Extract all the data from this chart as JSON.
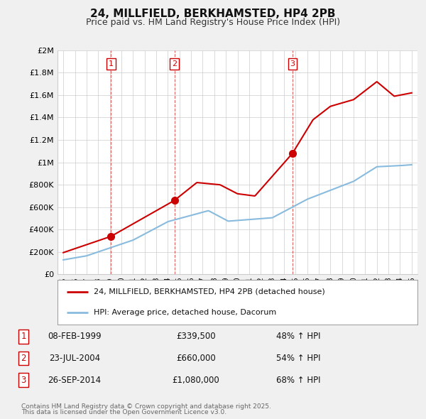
{
  "title": "24, MILLFIELD, BERKHAMSTED, HP4 2PB",
  "subtitle": "Price paid vs. HM Land Registry's House Price Index (HPI)",
  "bg_color": "#f0f0f0",
  "plot_bg_color": "#ffffff",
  "grid_color": "#cccccc",
  "red_color": "#cc0000",
  "blue_color": "#88bbdd",
  "vertical_line_color": "#cc0000",
  "transactions": [
    {
      "label": "1",
      "date_num": 1999.1,
      "price": 339500,
      "hpi_pct": "48% ↑ HPI",
      "date_str": "08-FEB-1999"
    },
    {
      "label": "2",
      "date_num": 2004.56,
      "price": 660000,
      "hpi_pct": "54% ↑ HPI",
      "date_str": "23-JUL-2004"
    },
    {
      "label": "3",
      "date_num": 2014.73,
      "price": 1080000,
      "hpi_pct": "68% ↑ HPI",
      "date_str": "26-SEP-2014"
    }
  ],
  "ylim": [
    0,
    2000000
  ],
  "xlim": [
    1994.5,
    2025.5
  ],
  "yticks": [
    0,
    200000,
    400000,
    600000,
    800000,
    1000000,
    1200000,
    1400000,
    1600000,
    1800000,
    2000000
  ],
  "ytick_labels": [
    "£0",
    "£200K",
    "£400K",
    "£600K",
    "£800K",
    "£1M",
    "£1.2M",
    "£1.4M",
    "£1.6M",
    "£1.8M",
    "£2M"
  ],
  "xticks": [
    1995,
    1996,
    1997,
    1998,
    1999,
    2000,
    2001,
    2002,
    2003,
    2004,
    2005,
    2006,
    2007,
    2008,
    2009,
    2010,
    2011,
    2012,
    2013,
    2014,
    2015,
    2016,
    2017,
    2018,
    2019,
    2020,
    2021,
    2022,
    2023,
    2024,
    2025
  ],
  "legend_line1": "24, MILLFIELD, BERKHAMSTED, HP4 2PB (detached house)",
  "legend_line2": "HPI: Average price, detached house, Dacorum",
  "footer1": "Contains HM Land Registry data © Crown copyright and database right 2025.",
  "footer2": "This data is licensed under the Open Government Licence v3.0."
}
